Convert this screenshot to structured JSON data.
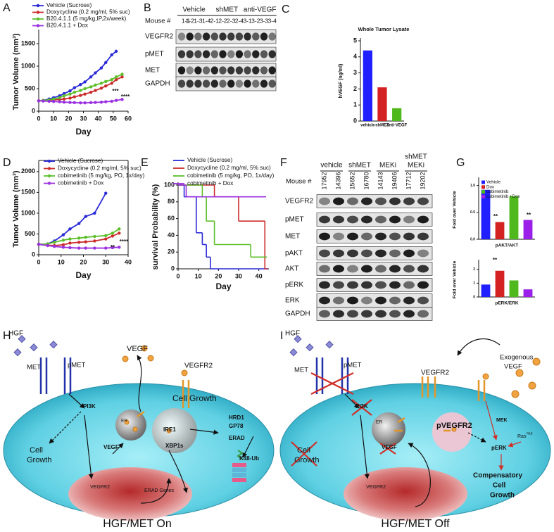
{
  "panel_labels": [
    "A",
    "B",
    "C",
    "D",
    "E",
    "F",
    "G",
    "H",
    "I"
  ],
  "chart_data": [
    {
      "type": "line",
      "xlabel": "Day",
      "ylabel": "Tumor Volume (mm³)",
      "x": [
        0,
        3,
        7,
        10,
        14,
        17,
        21,
        24,
        28,
        31,
        35,
        38,
        42,
        45,
        49,
        52,
        56
      ],
      "xlim": [
        0,
        60
      ],
      "xticks": [
        0,
        10,
        20,
        30,
        40,
        50,
        60
      ],
      "ylim": [
        0,
        1750
      ],
      "yticks": [
        0,
        500,
        1000,
        1500
      ],
      "legend": "top-left",
      "series": [
        {
          "name": "Vehicle (Sucrose)",
          "color": "#2a2ad8",
          "values": [
            230,
            240,
            270,
            300,
            340,
            390,
            450,
            520,
            590,
            650,
            760,
            850,
            960,
            1080,
            1250,
            1330,
            null
          ]
        },
        {
          "name": "Doxycycline (0.2 mg/ml, 5% suc)",
          "color": "#cc2b2b",
          "values": [
            230,
            235,
            240,
            250,
            260,
            270,
            290,
            320,
            350,
            380,
            420,
            460,
            510,
            560,
            620,
            700,
            760
          ]
        },
        {
          "name": "B20.4.1.1 (5 mg/kg,IP,2x/week)",
          "color": "#5cbf2a",
          "values": [
            230,
            240,
            250,
            270,
            300,
            340,
            380,
            420,
            460,
            500,
            540,
            580,
            620,
            660,
            700,
            760,
            820
          ]
        },
        {
          "name": "B20.4.1.1 + Dox",
          "color": "#9b30e0",
          "values": [
            230,
            225,
            220,
            215,
            210,
            200,
            195,
            190,
            185,
            185,
            190,
            195,
            200,
            210,
            220,
            240,
            260
          ]
        }
      ],
      "annotations": [
        "***",
        "****"
      ]
    },
    {
      "type": "bar",
      "title": "Whole Tumor Lysate",
      "ylabel": "hVEGF (ng/ml)",
      "categories": [
        "vehicle",
        "shMET",
        "anti-VEGF"
      ],
      "values": [
        4.4,
        2.1,
        0.8
      ],
      "colors": [
        "#1f1fff",
        "#d42222",
        "#4fb81c"
      ],
      "ylim": [
        0,
        5
      ],
      "yticks": [
        0,
        1,
        2,
        3,
        4,
        5
      ]
    },
    {
      "type": "line",
      "xlabel": "Day",
      "ylabel": "Tumor Volume (mm³)",
      "x": [
        0,
        4,
        7,
        11,
        14,
        18,
        21,
        25,
        30,
        33,
        36
      ],
      "xlim": [
        0,
        40
      ],
      "xticks": [
        0,
        10,
        20,
        30,
        40
      ],
      "ylim": [
        0,
        2200
      ],
      "yticks": [
        0,
        500,
        1000,
        1500,
        2000
      ],
      "legend": "top-left",
      "series": [
        {
          "name": "Vehicle (Sucrose)",
          "color": "#2a2ad8",
          "values": [
            250,
            260,
            330,
            480,
            620,
            750,
            920,
            1000,
            1480,
            null,
            null
          ]
        },
        {
          "name": "Doxycycline (0.2 mg/ml, 5% suc)",
          "color": "#cc2b2b",
          "values": [
            250,
            230,
            220,
            240,
            280,
            300,
            310,
            330,
            380,
            450,
            520
          ]
        },
        {
          "name": "cobimetinib (5 mg/kg, PO, 1x/day)",
          "color": "#5cbf2a",
          "values": [
            250,
            260,
            300,
            350,
            380,
            400,
            420,
            440,
            460,
            520,
            620
          ]
        },
        {
          "name": "cobimetinib + Dox",
          "color": "#9b30e0",
          "values": [
            250,
            220,
            200,
            180,
            170,
            160,
            160,
            160,
            160,
            170,
            180
          ]
        }
      ],
      "annotations": [
        "**",
        "****"
      ]
    },
    {
      "type": "step",
      "xlabel": "Day",
      "ylabel": "survival Probability (%)",
      "xlim": [
        0,
        45
      ],
      "xticks": [
        0,
        10,
        20,
        30,
        40
      ],
      "ylim": [
        0,
        100
      ],
      "yticks": [
        0,
        20,
        40,
        60,
        80,
        100
      ],
      "legend": "top",
      "series": [
        {
          "name": "Vehicle (Sucrose)",
          "color": "#2a2ad8",
          "x": [
            0,
            3,
            9,
            12,
            14,
            16
          ],
          "values": [
            100,
            86,
            43,
            29,
            14,
            0
          ]
        },
        {
          "name": "Doxycycline (0.2 mg/ml, 5% suc)",
          "color": "#cc2b2b",
          "x": [
            0,
            18,
            30,
            43
          ],
          "values": [
            100,
            86,
            57,
            0
          ]
        },
        {
          "name": "cobimetinib (5 mg/kg, PO, 1x/day)",
          "color": "#5cbf2a",
          "x": [
            0,
            12,
            14,
            18,
            36,
            44
          ],
          "values": [
            100,
            86,
            57,
            29,
            14,
            14
          ]
        },
        {
          "name": "cobimetinib + Dox",
          "color": "#9b30e0",
          "x": [
            0,
            4
          ],
          "values": [
            100,
            86
          ]
        }
      ]
    },
    {
      "type": "bar",
      "ylabel": "Fold over Vehicle",
      "xlabel": "pAKT/AKT",
      "legend": "top-left",
      "categories": [
        "Vehicle",
        "Dox",
        "cobimetinib",
        "cobimetinib +Dox"
      ],
      "values": [
        0.92,
        0.32,
        0.8,
        0.36
      ],
      "colors": [
        "#1f1fff",
        "#d42222",
        "#4fb81c",
        "#9b1fe8"
      ],
      "ylim": [
        0,
        1.1
      ],
      "yticks": [
        {
          "value": 0,
          "label": "0.0"
        },
        {
          "value": 0.5,
          "label": "0.5"
        },
        {
          "value": 1,
          "label": "1.0"
        }
      ],
      "annotations": [
        "**",
        "**"
      ]
    },
    {
      "type": "bar",
      "ylabel": "Fold over Vehicle",
      "xlabel": "pERK/ERK",
      "values": [
        0.9,
        1.9,
        1.2,
        0.55
      ],
      "colors": [
        "#1f1fff",
        "#d42222",
        "#4fb81c",
        "#9b1fe8"
      ],
      "ylim": [
        0,
        2.5
      ],
      "yticks": [
        0,
        1,
        2
      ],
      "annotations": [
        "**"
      ]
    }
  ],
  "blot_b": {
    "groups": [
      "Vehicle",
      "shMET",
      "anti-VEGF"
    ],
    "mouse_label": "Mouse #",
    "lanes": [
      "1-1",
      "1-2",
      "1-3",
      "1-4",
      "2-1",
      "2-2",
      "2-3",
      "2-4",
      "3-1",
      "3-2",
      "3-3",
      "3-4"
    ],
    "rows": [
      "VEGFR2",
      "pMET",
      "MET",
      "GAPDH"
    ]
  },
  "blot_f": {
    "groups": [
      [
        "vehicle"
      ],
      [
        "shMET"
      ],
      [
        "MEKi"
      ],
      [
        "shMET",
        "MEKi"
      ]
    ],
    "mouse_label": "Mouse #",
    "lanes": [
      "17952",
      "14396",
      "15652",
      "16780",
      "14143",
      "19406",
      "17712",
      "19202"
    ],
    "rows": [
      "VEGFR2",
      "pMET",
      "MET",
      "pAKT",
      "AKT",
      "pERK",
      "ERK",
      "GAPDH"
    ]
  },
  "diagram_h": {
    "labels": [
      "HGF",
      "MET",
      "pMET",
      "VEGF",
      "VEGFR2",
      "PI3K",
      "Cell",
      "Growth",
      "Cell Growth",
      "ER",
      "IRE1",
      "XBP1s",
      "HRD1",
      "GP78",
      "ERAD",
      "K48-Ub",
      "VEGF",
      "VEGFR2",
      "ERAD Genes"
    ],
    "caption": "HGF/MET On"
  },
  "diagram_i": {
    "labels": [
      "HGF",
      "MET",
      "pMET",
      "VEGFR2",
      "Exogenous",
      "VEGF",
      "ER",
      "pVEGFR2",
      "MEK",
      "Ras",
      "mut",
      "pERK",
      "PI3K",
      "Cell",
      "Growth",
      "VEGF",
      "VEGFR2",
      "Compensatory",
      "Cell",
      "Growth"
    ],
    "caption": "HGF/MET Off"
  }
}
